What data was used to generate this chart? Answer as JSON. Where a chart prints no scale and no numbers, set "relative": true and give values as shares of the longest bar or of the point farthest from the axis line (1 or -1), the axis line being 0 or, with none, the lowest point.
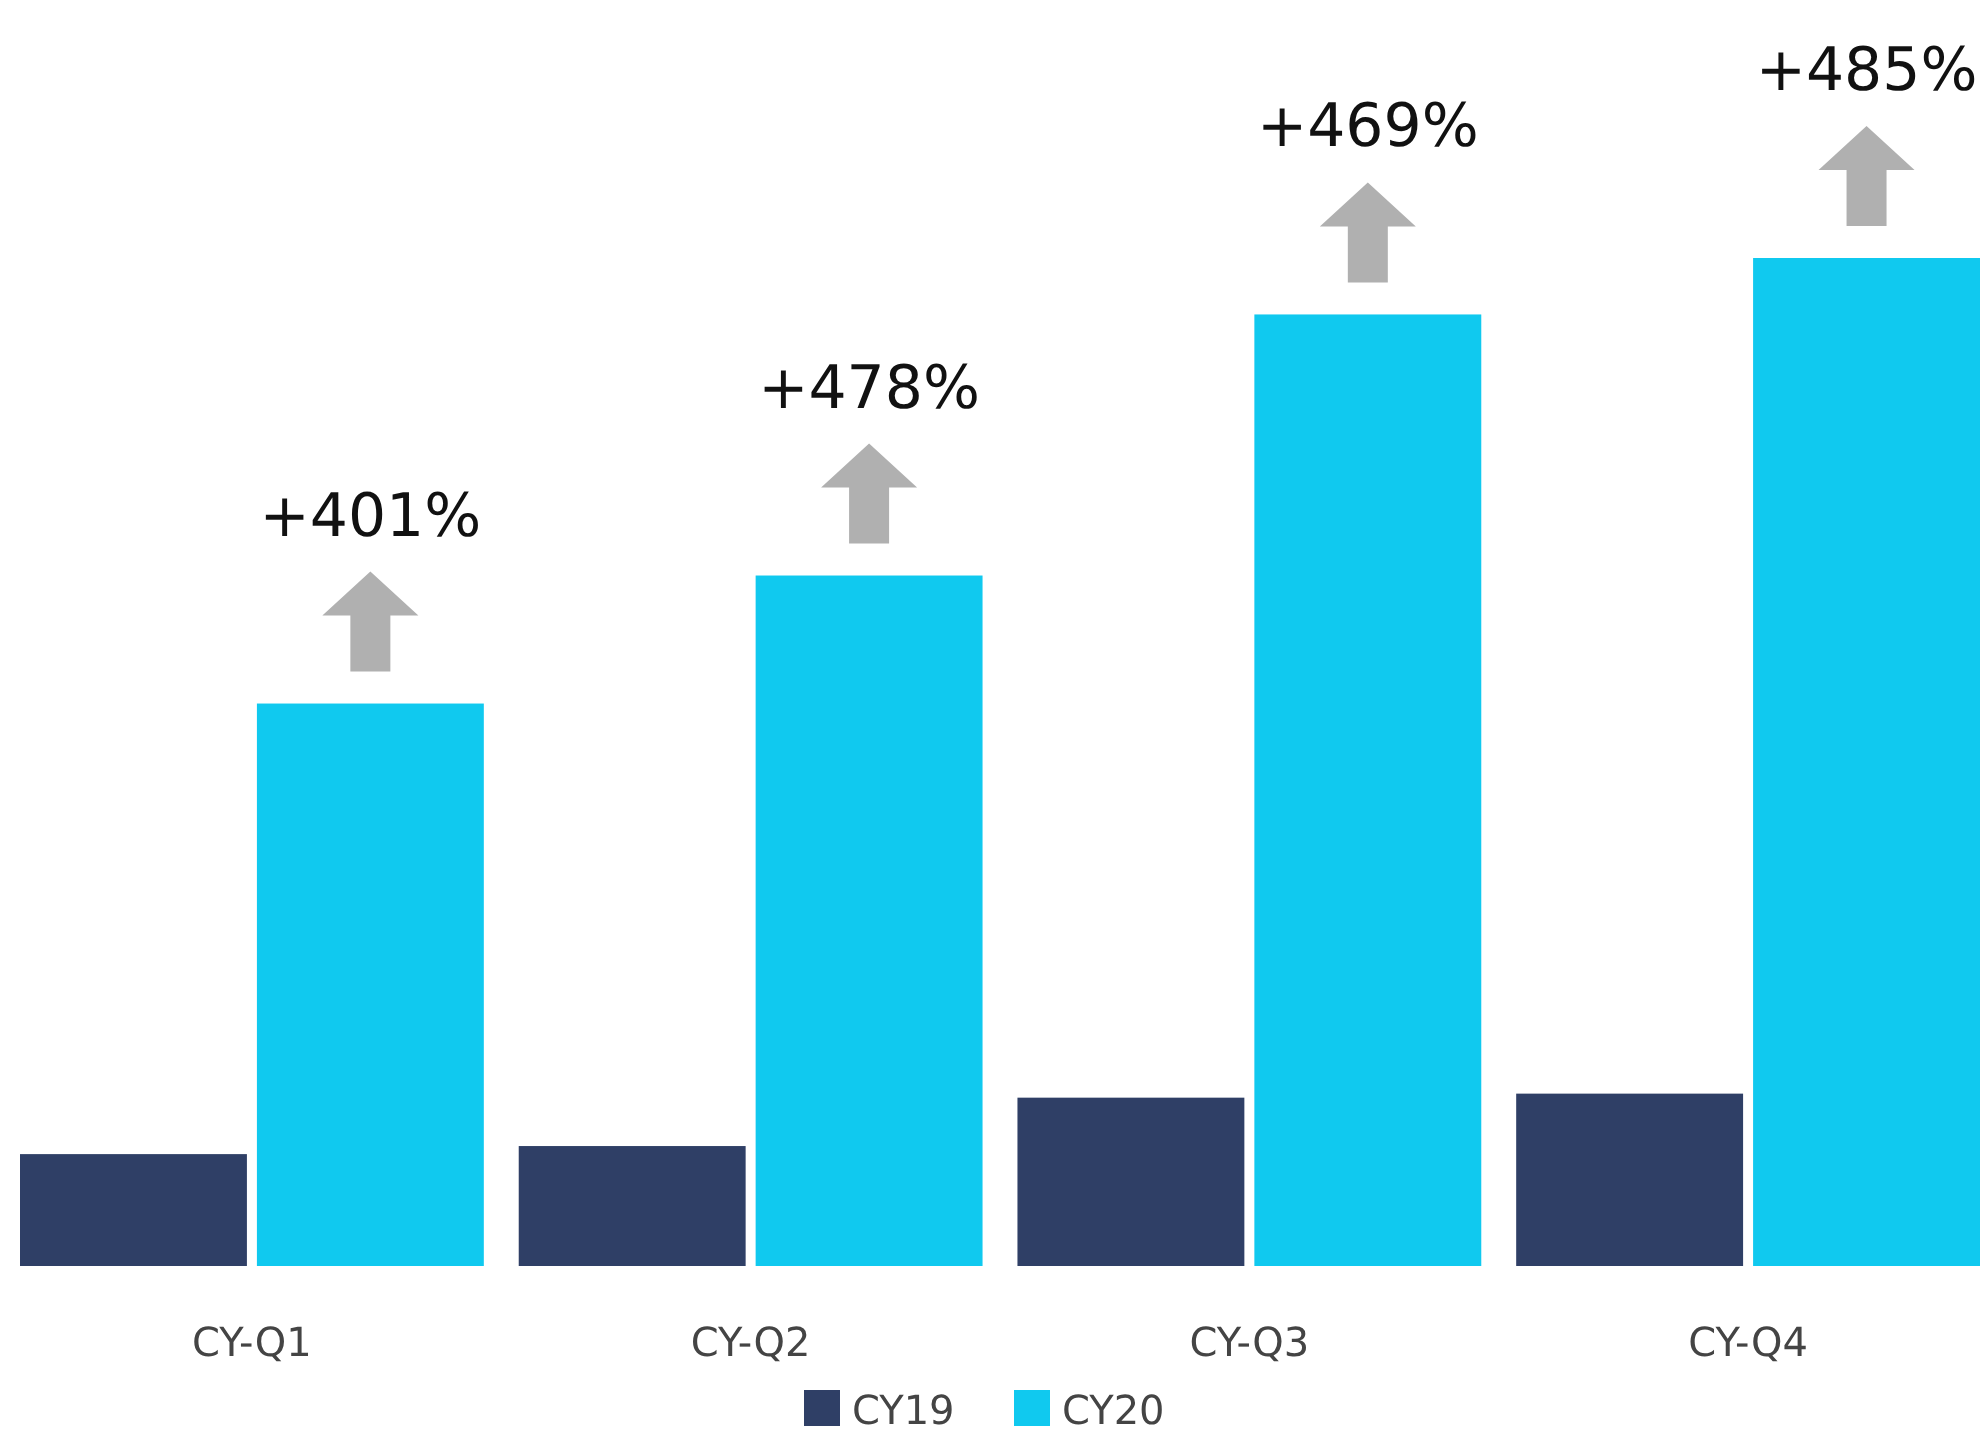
{
  "chart_data": {
    "type": "bar",
    "relative": true,
    "categories": [
      "CY-Q1",
      "CY-Q2",
      "CY-Q3",
      "CY-Q4"
    ],
    "series": [
      {
        "name": "CY19",
        "color": "#2f3f66",
        "values": [
          0.111,
          0.119,
          0.167,
          0.171
        ]
      },
      {
        "name": "CY20",
        "color": "#10c9ef",
        "values": [
          0.558,
          0.685,
          0.944,
          1
        ]
      }
    ],
    "annotations": [
      "+401%",
      "+478%",
      "+469%",
      "+485%"
    ],
    "legend": "bottom"
  }
}
